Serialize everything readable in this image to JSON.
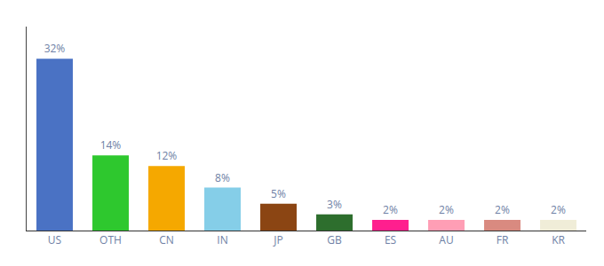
{
  "chart_data": {
    "type": "bar",
    "categories": [
      "US",
      "OTH",
      "CN",
      "IN",
      "JP",
      "GB",
      "ES",
      "AU",
      "FR",
      "KR"
    ],
    "values": [
      32,
      14,
      12,
      8,
      5,
      3,
      2,
      2,
      2,
      2
    ],
    "value_labels": [
      "32%",
      "14%",
      "12%",
      "8%",
      "5%",
      "3%",
      "2%",
      "2%",
      "2%",
      "2%"
    ],
    "colors": [
      "#4a72c4",
      "#2ec82e",
      "#f5a800",
      "#85cee8",
      "#8b4513",
      "#2d6e2d",
      "#ff1f8e",
      "#ff9eb5",
      "#d98a80",
      "#f0edd8"
    ],
    "ylim": [
      0,
      38
    ],
    "data_labels": true,
    "tick_labels": "x",
    "grid": false
  }
}
